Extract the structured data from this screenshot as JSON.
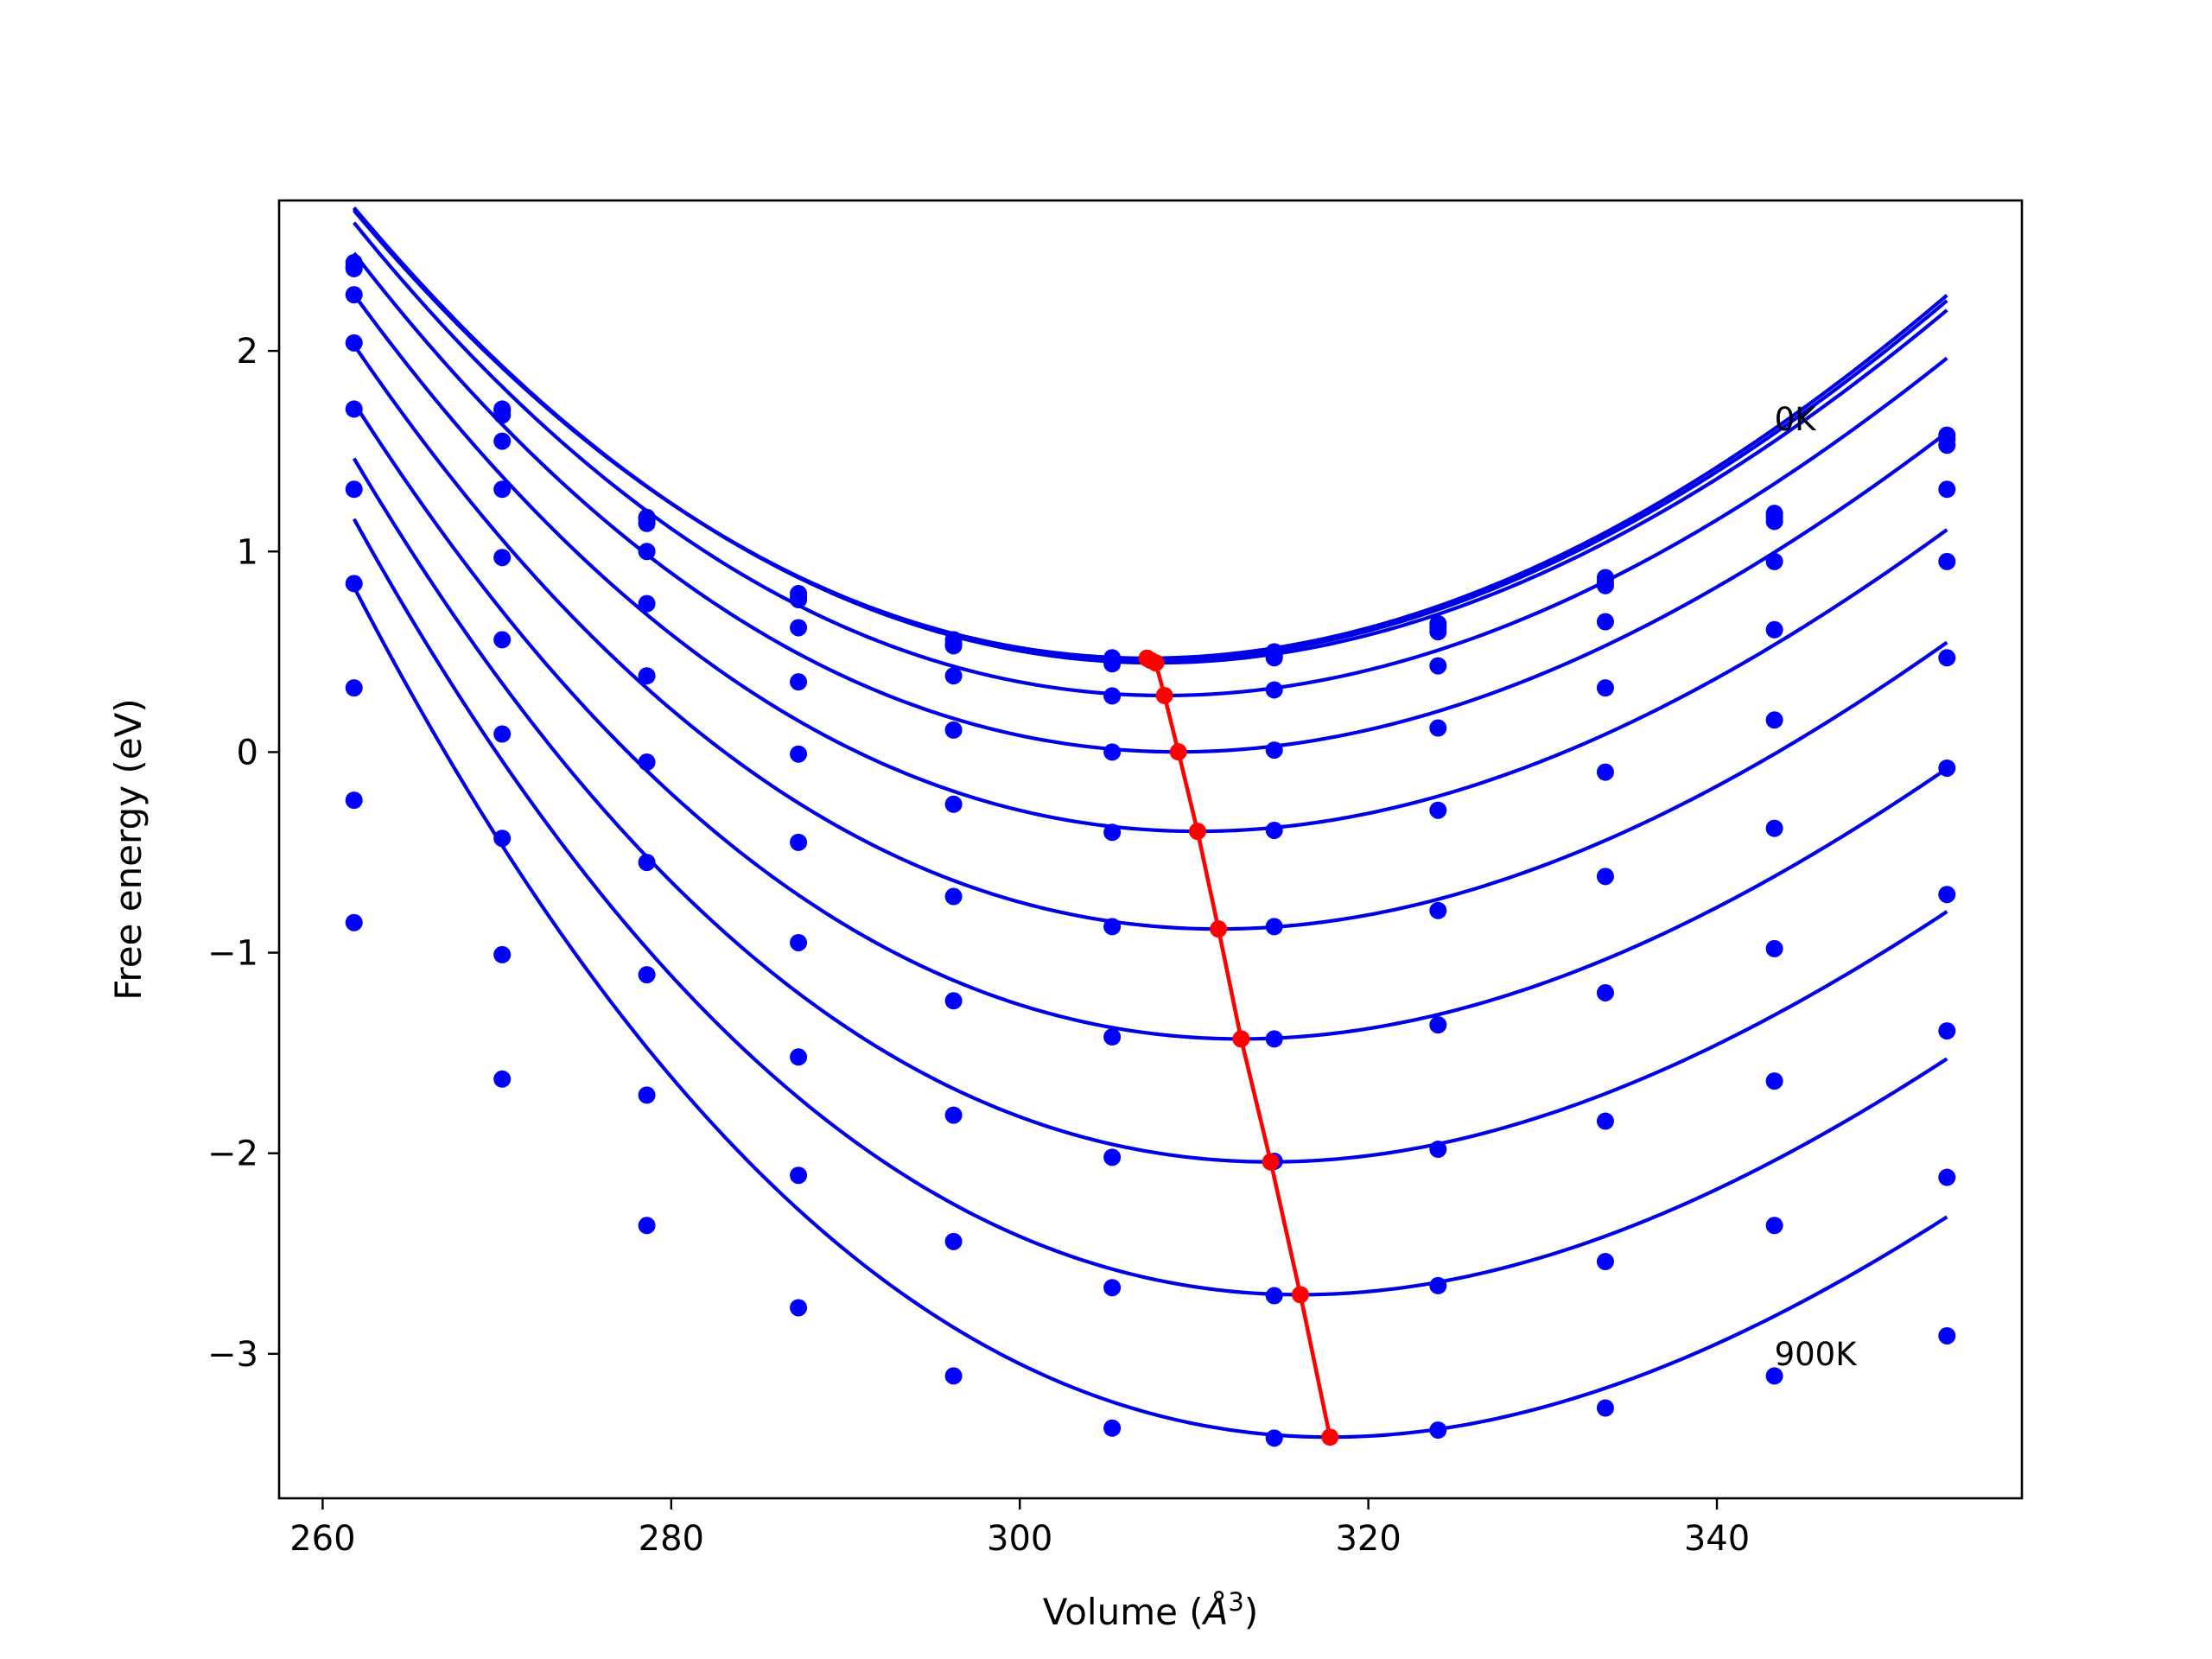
{
  "chart_data": {
    "type": "line",
    "title": "",
    "xlabel": "Volume (Å³)",
    "xlabel_parts": [
      "Volume (",
      "Å",
      "3",
      ")"
    ],
    "ylabel": "Free energy (eV)",
    "xlim": [
      257.5,
      357.5
    ],
    "ylim": [
      -3.72,
      2.75
    ],
    "xticks": [
      260,
      280,
      300,
      320,
      340
    ],
    "xtick_labels": [
      "260",
      "280",
      "300",
      "320",
      "340"
    ],
    "yticks": [
      -3,
      -2,
      -1,
      0,
      1,
      2
    ],
    "ytick_labels": [
      "−3",
      "−2",
      "−1",
      "0",
      "1",
      "2"
    ],
    "grid": false,
    "annotations": [
      {
        "text": "0K",
        "x": 343.3,
        "y": 1.66
      },
      {
        "text": "900K",
        "x": 343.3,
        "y": -3.0
      }
    ],
    "colors": {
      "data": "#0000ff",
      "curve": "#0000e6",
      "min_path": "#ff0000"
    },
    "volumes": [
      261.8,
      270.3,
      278.6,
      287.3,
      296.2,
      305.3,
      314.6,
      324.0,
      333.6,
      343.3,
      353.2
    ],
    "series": [
      {
        "points": [
          2.44,
          1.71,
          1.17,
          0.79,
          0.56,
          0.47,
          0.5,
          0.64,
          0.87,
          1.19,
          1.58
        ],
        "fit": {
          "V0": 307.3,
          "E0": 0.468,
          "a": 0.000969,
          "c": 2.4e-06
        }
      },
      {
        "points": [
          2.42,
          1.7,
          1.16,
          0.77,
          0.54,
          0.45,
          0.48,
          0.62,
          0.85,
          1.17,
          1.56
        ],
        "fit": {
          "V0": 307.5,
          "E0": 0.458,
          "a": 0.000968,
          "c": 2.4e-06
        }
      },
      {
        "points": [
          2.41,
          1.68,
          1.14,
          0.76,
          0.53,
          0.44,
          0.47,
          0.6,
          0.83,
          1.15,
          1.53
        ],
        "fit": {
          "V0": 307.8,
          "E0": 0.445,
          "a": 0.000962,
          "c": 2.4e-06
        }
      },
      {
        "points": [
          2.28,
          1.55,
          1.0,
          0.62,
          0.38,
          0.28,
          0.31,
          0.43,
          0.65,
          0.95,
          1.31
        ],
        "fit": {
          "V0": 308.3,
          "E0": 0.282,
          "a": 0.00096,
          "c": 2.8e-06
        }
      },
      {
        "points": [
          2.04,
          1.31,
          0.74,
          0.35,
          0.11,
          0.0,
          0.01,
          0.12,
          0.32,
          0.61,
          0.95
        ],
        "fit": {
          "V0": 309.1,
          "E0": 0.001,
          "a": 0.00096,
          "c": 3.2e-06
        }
      },
      {
        "points": [
          1.71,
          0.97,
          0.38,
          -0.01,
          -0.26,
          -0.4,
          -0.39,
          -0.29,
          -0.1,
          0.16,
          0.47
        ],
        "fit": {
          "V0": 310.2,
          "E0": -0.395,
          "a": 0.000968,
          "c": 3.6e-06
        }
      },
      {
        "points": [
          1.31,
          0.56,
          -0.05,
          -0.45,
          -0.72,
          -0.87,
          -0.87,
          -0.79,
          -0.62,
          -0.38,
          -0.08
        ],
        "fit": {
          "V0": 311.4,
          "E0": -0.882,
          "a": 0.000985,
          "c": 4e-06
        }
      },
      {
        "points": [
          0.84,
          0.09,
          -0.55,
          -0.95,
          -1.24,
          -1.42,
          -1.43,
          -1.36,
          -1.2,
          -0.98,
          -0.71
        ],
        "fit": {
          "V0": 312.7,
          "E0": -1.43,
          "a": 0.001,
          "c": 4.4e-06
        }
      },
      {
        "points": [
          0.32,
          -0.43,
          -1.11,
          -1.52,
          -1.81,
          -2.02,
          -2.04,
          -1.98,
          -1.84,
          -1.64,
          -1.39
        ],
        "fit": {
          "V0": 314.4,
          "E0": -2.043,
          "a": 0.001015,
          "c": 4.8e-06
        }
      },
      {
        "points": [
          -0.24,
          -1.01,
          -1.71,
          -2.11,
          -2.44,
          -2.67,
          -2.71,
          -2.66,
          -2.54,
          -2.36,
          -2.12
        ],
        "fit": {
          "V0": 316.1,
          "E0": -2.705,
          "a": 0.00104,
          "c": 5e-06
        }
      },
      {
        "points": [
          -0.85,
          -1.63,
          -2.36,
          -2.77,
          -3.11,
          -3.37,
          -3.42,
          -3.38,
          -3.27,
          -3.11,
          -2.91
        ],
        "fit": {
          "V0": 317.8,
          "E0": -3.415,
          "a": 0.00106,
          "c": 5.2e-06
        }
      }
    ],
    "minima": {
      "x": [
        307.3,
        307.5,
        307.8,
        308.3,
        309.1,
        310.2,
        311.4,
        312.7,
        314.4,
        316.1,
        317.8
      ],
      "y": [
        0.468,
        0.458,
        0.445,
        0.282,
        0.001,
        -0.395,
        -0.882,
        -1.43,
        -2.043,
        -2.705,
        -3.415
      ]
    }
  }
}
